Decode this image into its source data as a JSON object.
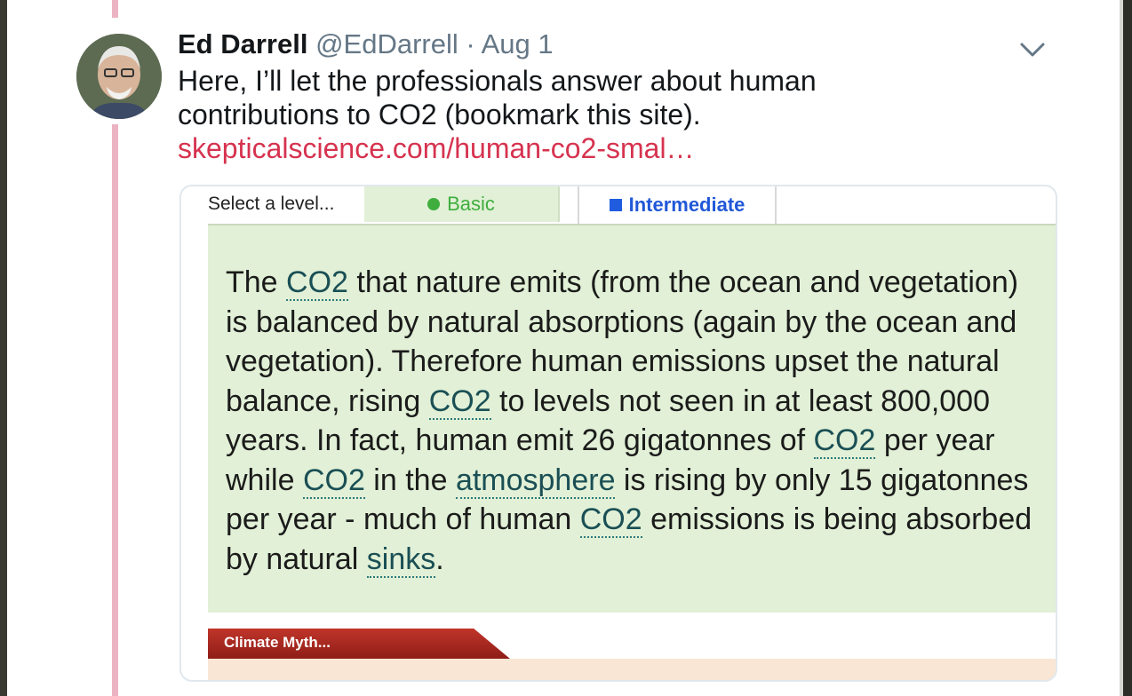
{
  "tweet": {
    "author_name": "Ed Darrell",
    "handle": "@EdDarrell",
    "separator": " · ",
    "date": "Aug 1",
    "text_line1": "Here, I’ll let the professionals answer about human",
    "text_line2": "contributions to CO2 (bookmark this site).",
    "link_text": "skepticalscience.com/human-co2-smal…",
    "avatar_icon": "avatar-photo",
    "menu_icon": "chevron-down-icon"
  },
  "card": {
    "select_label": "Select a level...",
    "tab_basic": "Basic",
    "tab_intermediate": "Intermediate",
    "colors": {
      "basic": "#3fae3f",
      "intermediate": "#2158d8",
      "panel": "#e1f0d6",
      "link": "#d6334f"
    },
    "body": {
      "s1": "The ",
      "k1": "CO2",
      "s2": " that nature emits (from the ocean and vegetation) is balanced by natural absorptions (again by the ocean and vegetation). Therefore human emissions upset the natural balance, rising ",
      "k2": "CO2",
      "s3": " to levels not seen in at least 800,000 years. In fact, human emit 26 gigatonnes of ",
      "k3": "CO2",
      "s4": " per year while ",
      "k4": "CO2",
      "s5": " in the ",
      "k5": "atmosphere",
      "s6": " is rising by only 15 gigatonnes per year - much of human ",
      "k6": "CO2",
      "s7": " emissions is being absorbed by natural ",
      "k7": "sinks",
      "s8": "."
    },
    "myth_label": "Climate Myth..."
  }
}
